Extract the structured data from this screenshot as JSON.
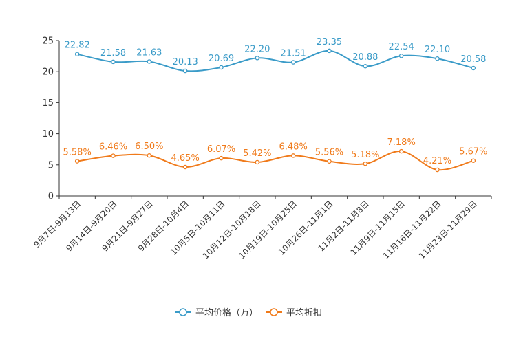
{
  "chart_data": {
    "type": "line",
    "title": "",
    "xlabel": "",
    "ylabel": "",
    "ylim": [
      0,
      25
    ],
    "yticks": [
      0,
      5,
      10,
      15,
      20,
      25
    ],
    "grid": false,
    "legend_position": "bottom",
    "categories": [
      "9月7日-9月13日",
      "9月14日-9月20日",
      "9月21日-9月27日",
      "9月28日-10月4日",
      "10月5日-10月11日",
      "10月12日-10月18日",
      "10月19日-10月25日",
      "10月26日-11月1日",
      "11月2日-11月8日",
      "11月9日-11月15日",
      "11月16日-11月22日",
      "11月23日-11月29日"
    ],
    "series": [
      {
        "name": "平均价格（万）",
        "color": "#3a9bc8",
        "values": [
          22.82,
          21.58,
          21.63,
          20.13,
          20.69,
          22.2,
          21.51,
          23.35,
          20.88,
          22.54,
          22.1,
          20.58
        ],
        "labels": [
          "22.82",
          "21.58",
          "21.63",
          "20.13",
          "20.69",
          "22.20",
          "21.51",
          "23.35",
          "20.88",
          "22.54",
          "22.10",
          "20.58"
        ]
      },
      {
        "name": "平均折扣",
        "color": "#f07a1a",
        "values": [
          5.58,
          6.46,
          6.5,
          4.65,
          6.07,
          5.42,
          6.48,
          5.56,
          5.18,
          7.18,
          4.21,
          5.67
        ],
        "labels": [
          "5.58%",
          "6.46%",
          "6.50%",
          "4.65%",
          "6.07%",
          "5.42%",
          "6.48%",
          "5.56%",
          "5.18%",
          "7.18%",
          "4.21%",
          "5.67%"
        ]
      }
    ]
  }
}
